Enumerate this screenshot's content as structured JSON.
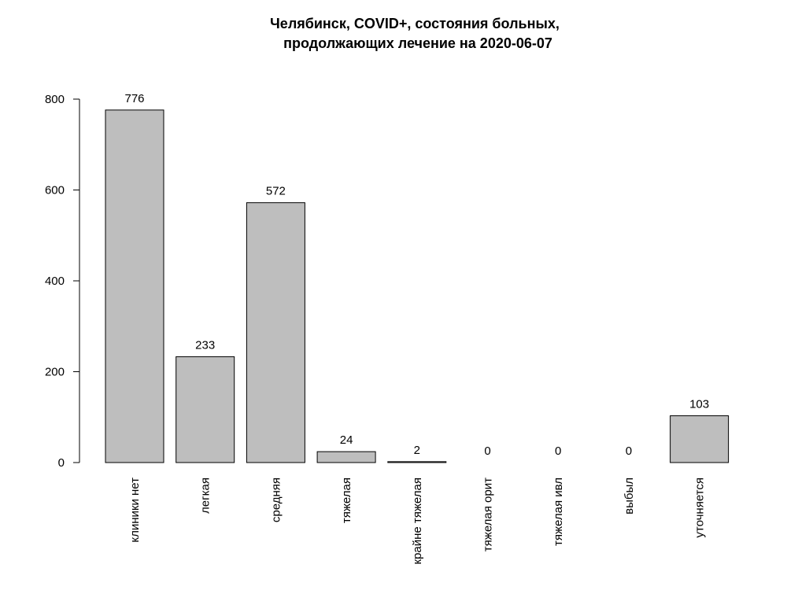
{
  "chart_data": {
    "type": "bar",
    "title": "Челябинск, COVID+, состояния больных,\nпродолжающих лечение на 2020-06-07",
    "title_lines": [
      "Челябинск, COVID+, состояния больных,",
      "продолжающих лечение на 2020-06-07"
    ],
    "xlabel": "",
    "ylabel": "",
    "categories": [
      "клиники нет",
      "легкая",
      "средняя",
      "тяжелая",
      "крайне тяжелая",
      "тяжелая орит",
      "тяжелая ивл",
      "выбыл",
      "уточняется"
    ],
    "values": [
      776,
      233,
      572,
      24,
      2,
      0,
      0,
      0,
      103
    ],
    "data_labels": [
      "776",
      "233",
      "572",
      "24",
      "2",
      "0",
      "0",
      "0",
      "103"
    ],
    "ylim": [
      0,
      800
    ],
    "y_ticks": [
      0,
      200,
      400,
      600,
      800
    ],
    "x_labels_rotated": true,
    "grid": false,
    "legend": "none",
    "colors": {
      "bar_fill": "#bebebe",
      "bar_stroke": "#000000",
      "text": "#000000",
      "background": "#ffffff"
    }
  }
}
